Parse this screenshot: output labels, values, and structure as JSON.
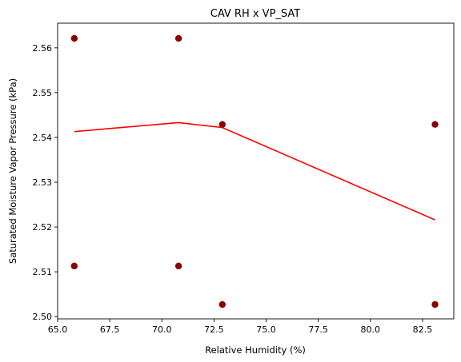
{
  "chart_data": {
    "type": "scatter",
    "title": "CAV RH x VP_SAT",
    "xlabel": "Relative Humidity (%)",
    "ylabel": "Saturated Moisture Vapor Pressure (kPa)",
    "xlim": [
      65.0,
      84.0
    ],
    "ylim": [
      2.4995,
      2.5655
    ],
    "x_ticks": [
      "65.0",
      "67.5",
      "70.0",
      "72.5",
      "75.0",
      "77.5",
      "80.0",
      "82.5"
    ],
    "y_ticks": [
      "2.50",
      "2.51",
      "2.52",
      "2.53",
      "2.54",
      "2.55",
      "2.56"
    ],
    "grid": false,
    "legend": "none",
    "series": [
      {
        "type": "scatter",
        "color": "#8b0000",
        "points": [
          [
            65.8,
            2.5621
          ],
          [
            65.8,
            2.5113
          ],
          [
            70.8,
            2.5621
          ],
          [
            70.8,
            2.5113
          ],
          [
            72.9,
            2.5429
          ],
          [
            72.9,
            2.5027
          ],
          [
            83.1,
            2.5429
          ],
          [
            83.1,
            2.5027
          ]
        ]
      },
      {
        "type": "line",
        "color": "#ff0000",
        "points": [
          [
            65.8,
            2.5413
          ],
          [
            70.8,
            2.5433
          ],
          [
            72.9,
            2.5422
          ],
          [
            83.1,
            2.5216
          ]
        ]
      }
    ]
  }
}
